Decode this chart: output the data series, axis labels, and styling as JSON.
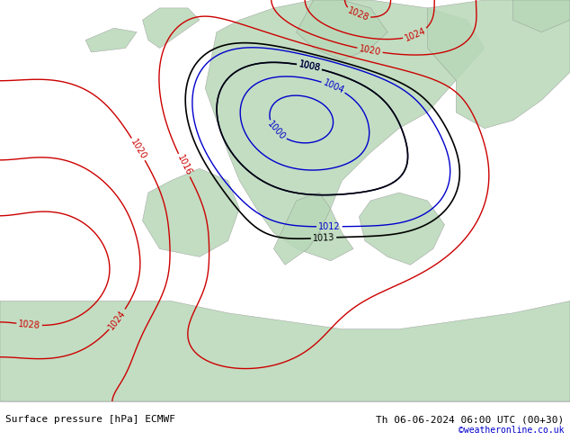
{
  "title_left": "Surface pressure [hPa] ECMWF",
  "title_right": "Th 06-06-2024 06:00 UTC (00+30)",
  "credit": "©weatheronline.co.uk",
  "bg_color": "#e8f4e8",
  "fig_width": 6.34,
  "fig_height": 4.9,
  "dpi": 100,
  "bottom_bar_color": "#ffffff",
  "bottom_bar_height": 0.08,
  "map_bg_land": "#c8e6c8",
  "map_bg_sea": "#ddeeff",
  "isobar_blue_color": "#0000cc",
  "isobar_red_color": "#cc0000",
  "isobar_black_color": "#000000",
  "label_fontsize": 7,
  "title_fontsize": 8,
  "credit_fontsize": 7,
  "credit_color": "#0000cc"
}
